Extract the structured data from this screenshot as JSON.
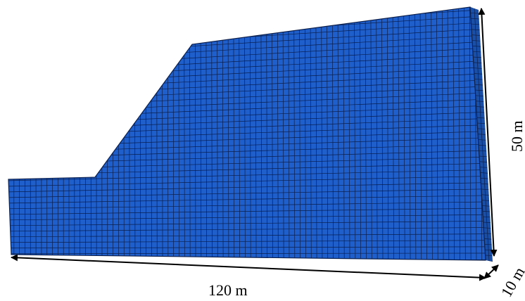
{
  "dimensions": {
    "length": "120 m",
    "height": "50 m",
    "depth": "10 m"
  },
  "colors": {
    "mesh_fill": "#1f5fcc",
    "mesh_side": "#1a4fa8",
    "mesh_lines": "#0b1f4d",
    "arrows": "#000000"
  }
}
